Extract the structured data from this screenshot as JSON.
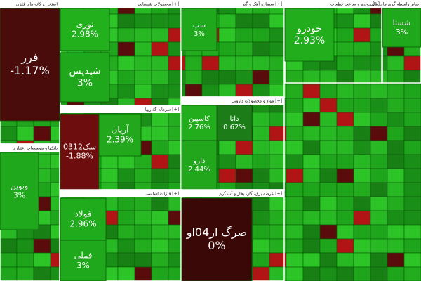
{
  "chart_data": {
    "type": "treemap",
    "sectors": [
      {
        "name": "استخراج کانه های فلزی",
        "tiles": [
          {
            "label": "فرر",
            "value": -1.17,
            "value_label": "-1.17%",
            "color": "#4a0b0b"
          }
        ]
      },
      {
        "name": "بانکها و موسسات اعتباری",
        "tiles": [
          {
            "label": "ونوین",
            "value": 3,
            "value_label": "3%",
            "color": "#1fa81b"
          }
        ]
      },
      {
        "name": "محصولات شیمیایی [+]",
        "tiles": [
          {
            "label": "نوری",
            "value": 2.98,
            "value_label": "2.98%",
            "color": "#22b01d"
          },
          {
            "label": "شپدیس",
            "value": 3,
            "value_label": "3%",
            "color": "#1fa81b"
          }
        ]
      },
      {
        "name": "سرمایه گذاریها [+]",
        "tiles": [
          {
            "label": "سک0312",
            "value": -1.88,
            "value_label": "-1.88%",
            "color": "#6e0d0d"
          },
          {
            "label": "آریان",
            "value": 2.39,
            "value_label": "2.39%",
            "color": "#22a71d"
          }
        ]
      },
      {
        "name": "فلزات اساسی [+]",
        "tiles": [
          {
            "label": "فولاد",
            "value": 2.96,
            "value_label": "2.96%",
            "color": "#20ab1c"
          },
          {
            "label": "فملی",
            "value": 3,
            "value_label": "3%",
            "color": "#1fa81b"
          }
        ]
      },
      {
        "name": "سیمان، آهک و گچ [+]",
        "tiles": [
          {
            "label": "سپ",
            "value": 3,
            "value_label": "3%",
            "color": "#1fa81b"
          }
        ]
      },
      {
        "name": "مواد و محصولات دارویی [+]",
        "tiles": [
          {
            "label": "دانا",
            "value": 0.62,
            "value_label": "0.62%",
            "color": "#1c7d18"
          },
          {
            "label": "کاسپین",
            "value": 2.76,
            "value_label": "2.76%",
            "color": "#22ad1d"
          },
          {
            "label": "دارو",
            "value": 2.44,
            "value_label": "2.44%",
            "color": "#21a61c"
          }
        ]
      },
      {
        "name": "عرضه برق، گاز، بخار و آب گرم [+]",
        "tiles": [
          {
            "label": "صرگ ار04او",
            "value": 0,
            "value_label": "0%",
            "color": "#3b0808"
          }
        ]
      },
      {
        "name": "خودرو و ساخت قطعات [+]",
        "tiles": [
          {
            "label": "خودرو",
            "value": 2.93,
            "value_label": "2.93%",
            "color": "#21ad1c"
          }
        ]
      },
      {
        "name": "سایر واسطه گری های مالی",
        "tiles": [
          {
            "label": "شستا",
            "value": 3,
            "value_label": "3%",
            "color": "#1fa81b"
          }
        ]
      }
    ]
  }
}
